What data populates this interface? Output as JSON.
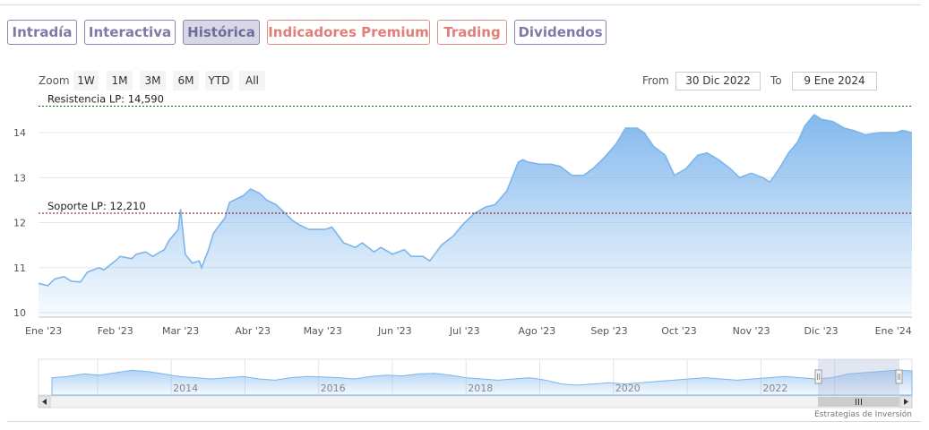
{
  "tabs": [
    {
      "label": "Intradía",
      "style": "purple"
    },
    {
      "label": "Interactiva",
      "style": "purple"
    },
    {
      "label": "Histórica",
      "style": "active"
    },
    {
      "label": "Indicadores Premium",
      "style": "salmon"
    },
    {
      "label": "Trading",
      "style": "salmon"
    },
    {
      "label": "Dividendos",
      "style": "purple"
    }
  ],
  "zoom": {
    "label": "Zoom",
    "buttons": [
      "1W",
      "1M",
      "3M",
      "6M",
      "YTD",
      "All"
    ]
  },
  "range": {
    "from_label": "From",
    "from_value": "30 Dic 2022",
    "to_label": "To",
    "to_value": "9 Ene 2024"
  },
  "credit": "Estrategias de Inversión",
  "colors": {
    "line": "#7cb5ec",
    "resistance": "#006400",
    "support": "#8b0000",
    "navigator_mask": "#a9b8d6"
  },
  "chart_data": {
    "type": "area",
    "ylim": [
      9.9,
      14.6
    ],
    "yticks": [
      10,
      11,
      12,
      13,
      14
    ],
    "x_tick_labels": [
      "Ene '23",
      "Feb '23",
      "Mar '23",
      "Abr '23",
      "May '23",
      "Jun '23",
      "Jul '23",
      "Ago '23",
      "Sep '23",
      "Oct '23",
      "Nov '23",
      "Dic '23",
      "Ene '24"
    ],
    "plot_lines": [
      {
        "label": "Resistencia LP: 14,590",
        "value": 14.59
      },
      {
        "label": "Soporte LP: 12,210",
        "value": 12.21
      }
    ],
    "series": [
      {
        "x": [
          "2022-12-30",
          "2023-01-03",
          "2023-01-06",
          "2023-01-10",
          "2023-01-13",
          "2023-01-17",
          "2023-01-20",
          "2023-01-25",
          "2023-01-27",
          "2023-02-01",
          "2023-02-03",
          "2023-02-08",
          "2023-02-10",
          "2023-02-14",
          "2023-02-17",
          "2023-02-22",
          "2023-02-24",
          "2023-02-28",
          "2023-03-01",
          "2023-03-03",
          "2023-03-06",
          "2023-03-09",
          "2023-03-10",
          "2023-03-13",
          "2023-03-15",
          "2023-03-17",
          "2023-03-20",
          "2023-03-22",
          "2023-03-24",
          "2023-03-28",
          "2023-03-31",
          "2023-04-04",
          "2023-04-07",
          "2023-04-11",
          "2023-04-14",
          "2023-04-18",
          "2023-04-21",
          "2023-04-25",
          "2023-04-28",
          "2023-05-02",
          "2023-05-05",
          "2023-05-10",
          "2023-05-15",
          "2023-05-18",
          "2023-05-23",
          "2023-05-26",
          "2023-05-31",
          "2023-06-05",
          "2023-06-08",
          "2023-06-13",
          "2023-06-16",
          "2023-06-21",
          "2023-06-26",
          "2023-06-30",
          "2023-07-05",
          "2023-07-10",
          "2023-07-14",
          "2023-07-19",
          "2023-07-24",
          "2023-07-26",
          "2023-07-28",
          "2023-08-02",
          "2023-08-07",
          "2023-08-11",
          "2023-08-16",
          "2023-08-21",
          "2023-08-25",
          "2023-08-30",
          "2023-09-04",
          "2023-09-08",
          "2023-09-13",
          "2023-09-16",
          "2023-09-20",
          "2023-09-25",
          "2023-09-29",
          "2023-10-04",
          "2023-10-09",
          "2023-10-13",
          "2023-10-18",
          "2023-10-23",
          "2023-10-27",
          "2023-11-01",
          "2023-11-06",
          "2023-11-09",
          "2023-11-13",
          "2023-11-17",
          "2023-11-21",
          "2023-11-24",
          "2023-11-28",
          "2023-12-01",
          "2023-12-06",
          "2023-12-11",
          "2023-12-15",
          "2023-12-20",
          "2023-12-26",
          "2024-01-02",
          "2024-01-05",
          "2024-01-09"
        ],
        "values": [
          10.65,
          10.6,
          10.75,
          10.8,
          10.7,
          10.68,
          10.9,
          11.0,
          10.95,
          11.15,
          11.25,
          11.2,
          11.3,
          11.35,
          11.25,
          11.4,
          11.6,
          11.85,
          12.3,
          11.3,
          11.1,
          11.15,
          11.0,
          11.4,
          11.75,
          11.9,
          12.1,
          12.45,
          12.5,
          12.6,
          12.75,
          12.65,
          12.5,
          12.4,
          12.25,
          12.05,
          11.95,
          11.85,
          11.85,
          11.85,
          11.9,
          11.55,
          11.45,
          11.55,
          11.35,
          11.45,
          11.3,
          11.4,
          11.25,
          11.25,
          11.15,
          11.5,
          11.7,
          11.95,
          12.2,
          12.35,
          12.4,
          12.7,
          13.35,
          13.4,
          13.35,
          13.3,
          13.3,
          13.25,
          13.05,
          13.05,
          13.2,
          13.45,
          13.75,
          14.1,
          14.1,
          14.0,
          13.7,
          13.5,
          13.05,
          13.2,
          13.5,
          13.55,
          13.4,
          13.2,
          13.0,
          13.1,
          13.0,
          12.9,
          13.2,
          13.55,
          13.8,
          14.15,
          14.4,
          14.3,
          14.25,
          14.1,
          14.05,
          13.95,
          14.0,
          14.0,
          14.05,
          14.0
        ]
      }
    ]
  },
  "navigator": {
    "year_labels": [
      "2014",
      "2016",
      "2018",
      "2020",
      "2022"
    ]
  }
}
